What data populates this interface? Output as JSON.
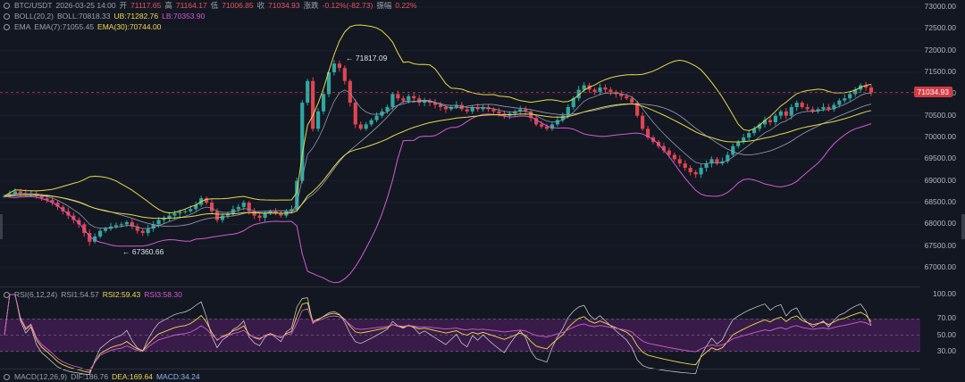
{
  "legend": {
    "symbol": "BTC/USDT",
    "datetime": "2026-03-25 14:00",
    "open_label": "开",
    "open": "71117.65",
    "high_label": "高",
    "high": "71164.17",
    "low_label": "低",
    "low": "71006.85",
    "close_label": "收",
    "close": "71034.93",
    "change_label": "涨跌",
    "change": "-0.12%(-82.73)",
    "amp_label": "振幅",
    "amp": "0.22%"
  },
  "boll": {
    "label": "BOLL(20,2)",
    "mid": "BOLL:70818.33",
    "ub": "UB:71282.76",
    "lb": "LB:70353.90"
  },
  "ema": {
    "label": "EMA",
    "ema7": "EMA(7):71055.45",
    "ema30": "EMA(30):70744.00"
  },
  "rsi": {
    "label": "RSI(6,12,24)",
    "rsi1": "RSI1:54.57",
    "rsi2": "RSI2:59.43",
    "rsi3": "RSI3:58.30"
  },
  "macd": {
    "label": "MACD(12,26,9)",
    "dif": "DIF:186.76",
    "dea": "DEA:169.64",
    "macd": "MACD:34.24"
  },
  "price_axis": [
    "73000.00",
    "72500.00",
    "72000.00",
    "71500.00",
    "71000.00",
    "70500.00",
    "70000.00",
    "69500.00",
    "69000.00",
    "68500.00",
    "68000.00",
    "67500.00",
    "67000.00"
  ],
  "rsi_axis": [
    "100.00",
    "70.00",
    "50.00",
    "30.00"
  ],
  "current_price_tag": "71034.93",
  "annotations": {
    "high_mark": "71817.09",
    "low_mark": "67360.66"
  },
  "colors": {
    "background": "#131722",
    "up": "#2ea8a0",
    "down": "#e0454f",
    "boll_band": "#e6d94a",
    "boll_lb": "#d25bd0",
    "ema7": "#8f98b0",
    "rsi_zone": "#5a1f6a"
  },
  "chart_data": {
    "type": "candlestick",
    "price_range": [
      66600,
      73100
    ],
    "current_price": 71034.93,
    "high": 71817.09,
    "low": 67360.66,
    "close_path": [
      68650,
      68700,
      68760,
      68720,
      68690,
      68710,
      68650,
      68600,
      68560,
      68500,
      68400,
      68300,
      68200,
      68100,
      68000,
      67800,
      67600,
      67720,
      67850,
      67900,
      67950,
      67980,
      68000,
      68050,
      67950,
      67850,
      67800,
      67900,
      68000,
      68100,
      68150,
      68200,
      68250,
      68280,
      68300,
      68350,
      68450,
      68600,
      68500,
      68300,
      68100,
      68200,
      68250,
      68350,
      68400,
      68500,
      68300,
      68200,
      68150,
      68250,
      68300,
      68250,
      68200,
      68300,
      68350,
      69000,
      70800,
      71300,
      70200,
      70600,
      71000,
      71500,
      71700,
      71600,
      71300,
      70800,
      70300,
      70200,
      70300,
      70400,
      70500,
      70600,
      70700,
      71000,
      70900,
      70850,
      70950,
      70900,
      70800,
      70850,
      70800,
      70750,
      70700,
      70650,
      70700,
      70750,
      70650,
      70600,
      70700,
      70650,
      70700,
      70650,
      70600,
      70550,
      70500,
      70550,
      70600,
      70650,
      70600,
      70450,
      70300,
      70250,
      70200,
      70300,
      70400,
      70500,
      70700,
      70900,
      71100,
      71200,
      71100,
      71050,
      71150,
      71100,
      71050,
      71000,
      70950,
      70900,
      70800,
      70500,
      70200,
      70000,
      69900,
      69800,
      69700,
      69600,
      69500,
      69400,
      69300,
      69200,
      69150,
      69300,
      69400,
      69500,
      69400,
      69450,
      69600,
      69800,
      69900,
      70000,
      70100,
      70200,
      70300,
      70400,
      70350,
      70500,
      70600,
      70500,
      70700,
      70800,
      70700,
      70650,
      70600,
      70650,
      70700,
      70650,
      70750,
      70850,
      70900,
      71000,
      71100,
      71200,
      71150,
      71034
    ]
  }
}
